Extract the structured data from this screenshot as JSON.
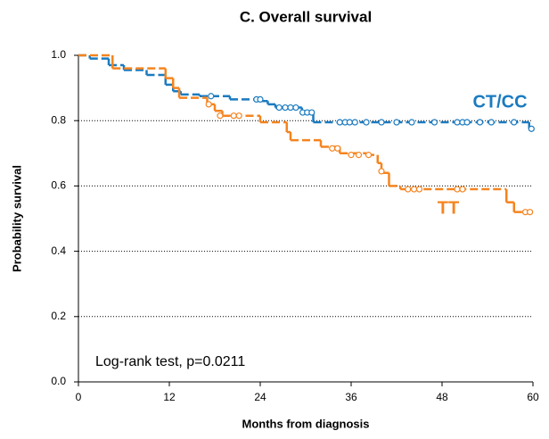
{
  "chart_data": {
    "type": "step",
    "title": "C. Overall survival",
    "x_label": "Months from diagnosis",
    "y_label": "Probability survival",
    "annotation": "Log-rank test, p=0.0211",
    "xlim": [
      0,
      60
    ],
    "xticks": [
      0,
      12,
      24,
      36,
      48,
      60
    ],
    "ylim": [
      0,
      1
    ],
    "yticks": [
      {
        "value": 0,
        "label": "0.0"
      },
      0.2,
      0.4,
      0.6,
      0.8,
      {
        "value": 1,
        "label": "1.0"
      }
    ],
    "grid": true,
    "series": [
      {
        "name": "CT/CC",
        "color": "#1b7bc0",
        "x": [
          0,
          1.5,
          4,
          6,
          9,
          11.5,
          12.5,
          13.5,
          16,
          20,
          24,
          25,
          26,
          29.5,
          31,
          59.5
        ],
        "values": [
          1,
          0.99,
          0.97,
          0.955,
          0.94,
          0.91,
          0.89,
          0.88,
          0.875,
          0.865,
          0.86,
          0.85,
          0.84,
          0.825,
          0.795,
          0.775
        ],
        "censored": {
          "x": [
            17.5,
            23.5,
            24,
            26.5,
            27.3,
            28,
            28.7,
            29.6,
            30.2,
            30.8,
            34.5,
            35.2,
            35.8,
            36.5,
            38,
            40,
            42,
            44,
            47,
            50,
            50.7,
            51.3,
            53,
            54.5,
            57.5,
            59.8
          ],
          "values": [
            0.875,
            0.865,
            0.865,
            0.84,
            0.84,
            0.84,
            0.84,
            0.825,
            0.825,
            0.825,
            0.795,
            0.795,
            0.795,
            0.795,
            0.795,
            0.795,
            0.795,
            0.795,
            0.795,
            0.795,
            0.795,
            0.795,
            0.795,
            0.795,
            0.795,
            0.775
          ]
        }
      },
      {
        "name": "TT",
        "color": "#f5841f",
        "x": [
          0,
          4.5,
          11.5,
          12.5,
          13.3,
          17,
          18,
          19,
          24,
          27.5,
          28,
          32,
          34.5,
          38,
          39.5,
          40,
          41,
          42.5,
          56.5,
          57.5
        ],
        "values": [
          1,
          0.96,
          0.93,
          0.9,
          0.87,
          0.85,
          0.83,
          0.815,
          0.795,
          0.765,
          0.74,
          0.72,
          0.7,
          0.695,
          0.67,
          0.64,
          0.6,
          0.59,
          0.55,
          0.52
        ],
        "censored": {
          "x": [
            17.2,
            18.7,
            20.5,
            21.2,
            33.5,
            34.2,
            36,
            37,
            38.3,
            40,
            43.5,
            44.3,
            45,
            50,
            50.7,
            59,
            59.6
          ],
          "values": [
            0.85,
            0.815,
            0.815,
            0.815,
            0.715,
            0.715,
            0.695,
            0.695,
            0.695,
            0.645,
            0.59,
            0.59,
            0.59,
            0.59,
            0.59,
            0.52,
            0.52
          ]
        }
      }
    ]
  }
}
